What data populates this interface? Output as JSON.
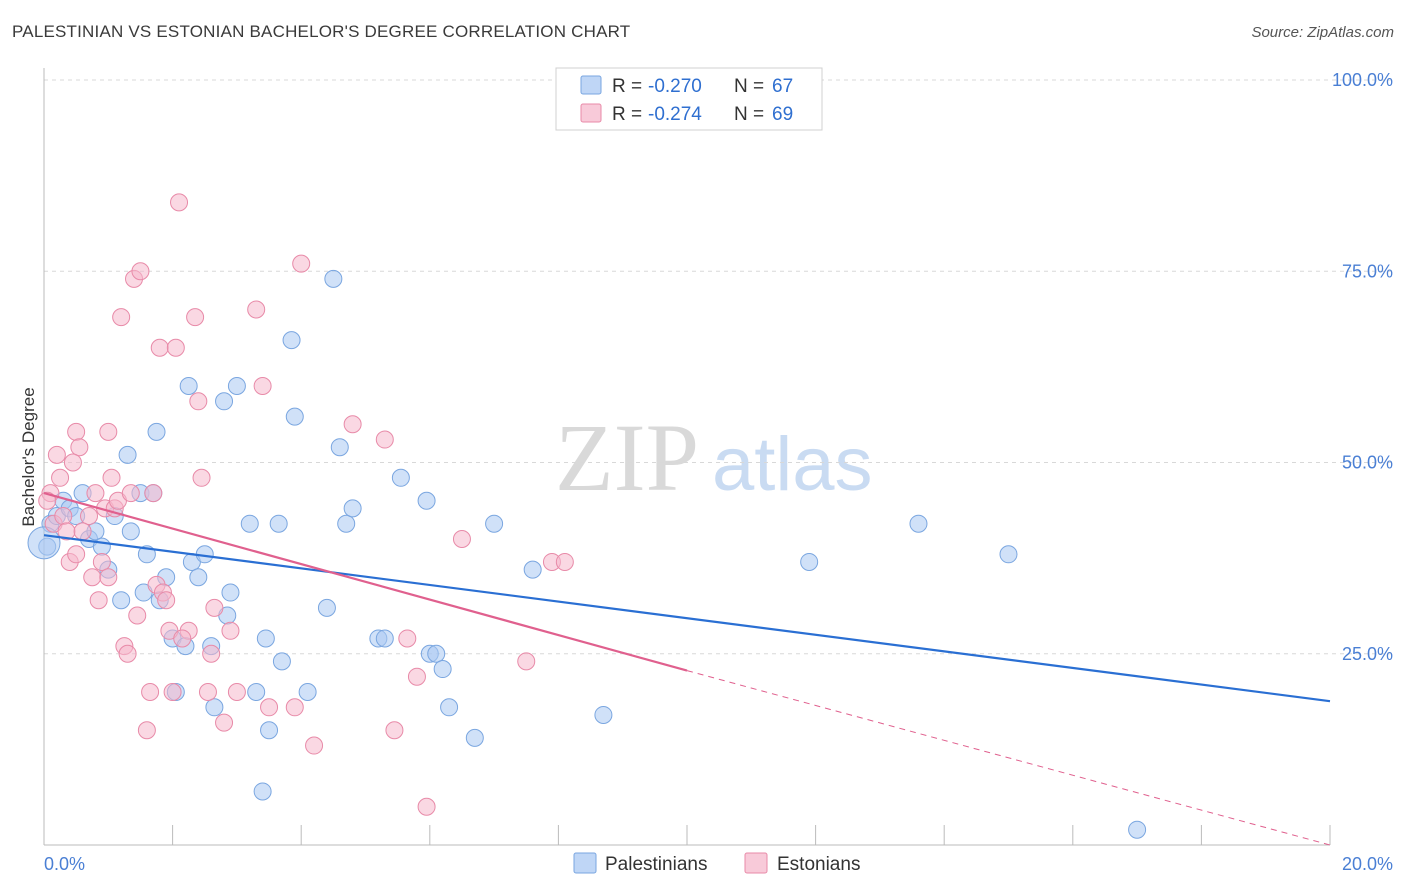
{
  "title": "PALESTINIAN VS ESTONIAN BACHELOR'S DEGREE CORRELATION CHART",
  "source": "Source: ZipAtlas.com",
  "watermark": {
    "zip": "ZIP",
    "atlas": "atlas"
  },
  "legend_top": [
    {
      "r_label": "R =",
      "r_value": "-0.270",
      "n_label": "N =",
      "n_value": "67",
      "color": "#a9c8f3"
    },
    {
      "r_label": "R =",
      "r_value": "-0.274",
      "n_label": "N =",
      "n_value": "69",
      "color": "#f6b8cc"
    }
  ],
  "legend_bottom": [
    "Palestinians",
    "Estonians"
  ],
  "colors": {
    "blue_fill": "#a9c8f3",
    "blue_stroke": "#7aa6e0",
    "blue_line": "#2a6fd3",
    "pink_fill": "#f6b8cc",
    "pink_stroke": "#e88aa8",
    "pink_line": "#e0608e",
    "grid": "#d8d8d8",
    "tick_text": "#4a7fd4"
  },
  "chart_data": {
    "type": "scatter",
    "title": "PALESTINIAN VS ESTONIAN BACHELOR'S DEGREE CORRELATION CHART",
    "xlabel": "",
    "ylabel": "Bachelor's Degree",
    "xlim": [
      0,
      20
    ],
    "ylim": [
      0,
      100
    ],
    "x_tick_labels": [
      "0.0%",
      "20.0%"
    ],
    "y_tick_labels": [
      "100.0%",
      "75.0%",
      "50.0%",
      "25.0%"
    ],
    "y_ticks": [
      100,
      75,
      50,
      25
    ],
    "series": [
      {
        "name": "Palestinians",
        "r": -0.27,
        "n": 67,
        "trend": {
          "x": [
            0,
            20
          ],
          "y": [
            40.5,
            18.8
          ]
        },
        "points": [
          [
            0.05,
            39
          ],
          [
            0.1,
            42
          ],
          [
            0.2,
            43
          ],
          [
            0.3,
            45
          ],
          [
            0.4,
            44
          ],
          [
            0.5,
            43
          ],
          [
            0.6,
            46
          ],
          [
            0.7,
            40
          ],
          [
            0.8,
            41
          ],
          [
            0.9,
            39
          ],
          [
            1.0,
            36
          ],
          [
            1.1,
            43
          ],
          [
            1.2,
            32
          ],
          [
            1.3,
            51
          ],
          [
            1.35,
            41
          ],
          [
            1.5,
            46
          ],
          [
            1.55,
            33
          ],
          [
            1.6,
            38
          ],
          [
            1.7,
            46
          ],
          [
            1.75,
            54
          ],
          [
            1.8,
            32
          ],
          [
            1.9,
            35
          ],
          [
            2.0,
            27
          ],
          [
            2.05,
            20
          ],
          [
            2.2,
            26
          ],
          [
            2.25,
            60
          ],
          [
            2.3,
            37
          ],
          [
            2.4,
            35
          ],
          [
            2.5,
            38
          ],
          [
            2.6,
            26
          ],
          [
            2.65,
            18
          ],
          [
            2.8,
            58
          ],
          [
            2.85,
            30
          ],
          [
            2.9,
            33
          ],
          [
            3.0,
            60
          ],
          [
            3.2,
            42
          ],
          [
            3.3,
            20
          ],
          [
            3.4,
            7
          ],
          [
            3.45,
            27
          ],
          [
            3.5,
            15
          ],
          [
            3.65,
            42
          ],
          [
            3.7,
            24
          ],
          [
            3.85,
            66
          ],
          [
            3.9,
            56
          ],
          [
            4.1,
            20
          ],
          [
            4.4,
            31
          ],
          [
            4.5,
            74
          ],
          [
            4.6,
            52
          ],
          [
            4.7,
            42
          ],
          [
            4.8,
            44
          ],
          [
            5.2,
            27
          ],
          [
            5.3,
            27
          ],
          [
            5.55,
            48
          ],
          [
            5.95,
            45
          ],
          [
            6.0,
            25
          ],
          [
            6.1,
            25
          ],
          [
            6.2,
            23
          ],
          [
            6.3,
            18
          ],
          [
            6.7,
            14
          ],
          [
            7.0,
            42
          ],
          [
            7.6,
            36
          ],
          [
            8.7,
            17
          ],
          [
            11.9,
            37
          ],
          [
            13.6,
            42
          ],
          [
            15.0,
            38
          ],
          [
            17.0,
            2
          ],
          [
            0.0,
            39.5
          ]
        ]
      },
      {
        "name": "Estonians",
        "r": -0.274,
        "n": 69,
        "trend": {
          "x": [
            0,
            10
          ],
          "y": [
            46,
            22.8
          ]
        },
        "trend_dashed": {
          "x": [
            10,
            20
          ],
          "y": [
            22.8,
            0
          ]
        },
        "points": [
          [
            0.1,
            46
          ],
          [
            0.15,
            42
          ],
          [
            0.2,
            51
          ],
          [
            0.25,
            48
          ],
          [
            0.3,
            43
          ],
          [
            0.4,
            37
          ],
          [
            0.5,
            38
          ],
          [
            0.5,
            54
          ],
          [
            0.55,
            52
          ],
          [
            0.7,
            43
          ],
          [
            0.75,
            35
          ],
          [
            0.8,
            46
          ],
          [
            0.85,
            32
          ],
          [
            0.9,
            37
          ],
          [
            0.95,
            44
          ],
          [
            1.0,
            35
          ],
          [
            1.0,
            54
          ],
          [
            1.05,
            48
          ],
          [
            1.1,
            44
          ],
          [
            1.15,
            45
          ],
          [
            1.2,
            69
          ],
          [
            1.25,
            26
          ],
          [
            1.3,
            25
          ],
          [
            1.35,
            46
          ],
          [
            1.4,
            74
          ],
          [
            1.5,
            75
          ],
          [
            1.6,
            15
          ],
          [
            1.65,
            20
          ],
          [
            1.7,
            46
          ],
          [
            1.75,
            34
          ],
          [
            1.8,
            65
          ],
          [
            1.85,
            33
          ],
          [
            1.9,
            32
          ],
          [
            1.95,
            28
          ],
          [
            2.0,
            20
          ],
          [
            2.05,
            65
          ],
          [
            2.1,
            84
          ],
          [
            2.25,
            28
          ],
          [
            2.35,
            69
          ],
          [
            2.4,
            58
          ],
          [
            2.45,
            48
          ],
          [
            2.55,
            20
          ],
          [
            2.6,
            25
          ],
          [
            2.65,
            31
          ],
          [
            2.8,
            16
          ],
          [
            2.9,
            28
          ],
          [
            3.0,
            20
          ],
          [
            3.3,
            70
          ],
          [
            3.4,
            60
          ],
          [
            3.5,
            18
          ],
          [
            3.9,
            18
          ],
          [
            4.0,
            76
          ],
          [
            4.2,
            13
          ],
          [
            4.8,
            55
          ],
          [
            5.3,
            53
          ],
          [
            5.45,
            15
          ],
          [
            5.65,
            27
          ],
          [
            5.8,
            22
          ],
          [
            5.95,
            5
          ],
          [
            6.5,
            40
          ],
          [
            7.5,
            24
          ],
          [
            7.9,
            37
          ],
          [
            8.1,
            37
          ],
          [
            0.05,
            45
          ],
          [
            0.35,
            41
          ],
          [
            1.45,
            30
          ],
          [
            2.15,
            27
          ],
          [
            0.6,
            41
          ],
          [
            0.45,
            50
          ]
        ]
      }
    ]
  }
}
